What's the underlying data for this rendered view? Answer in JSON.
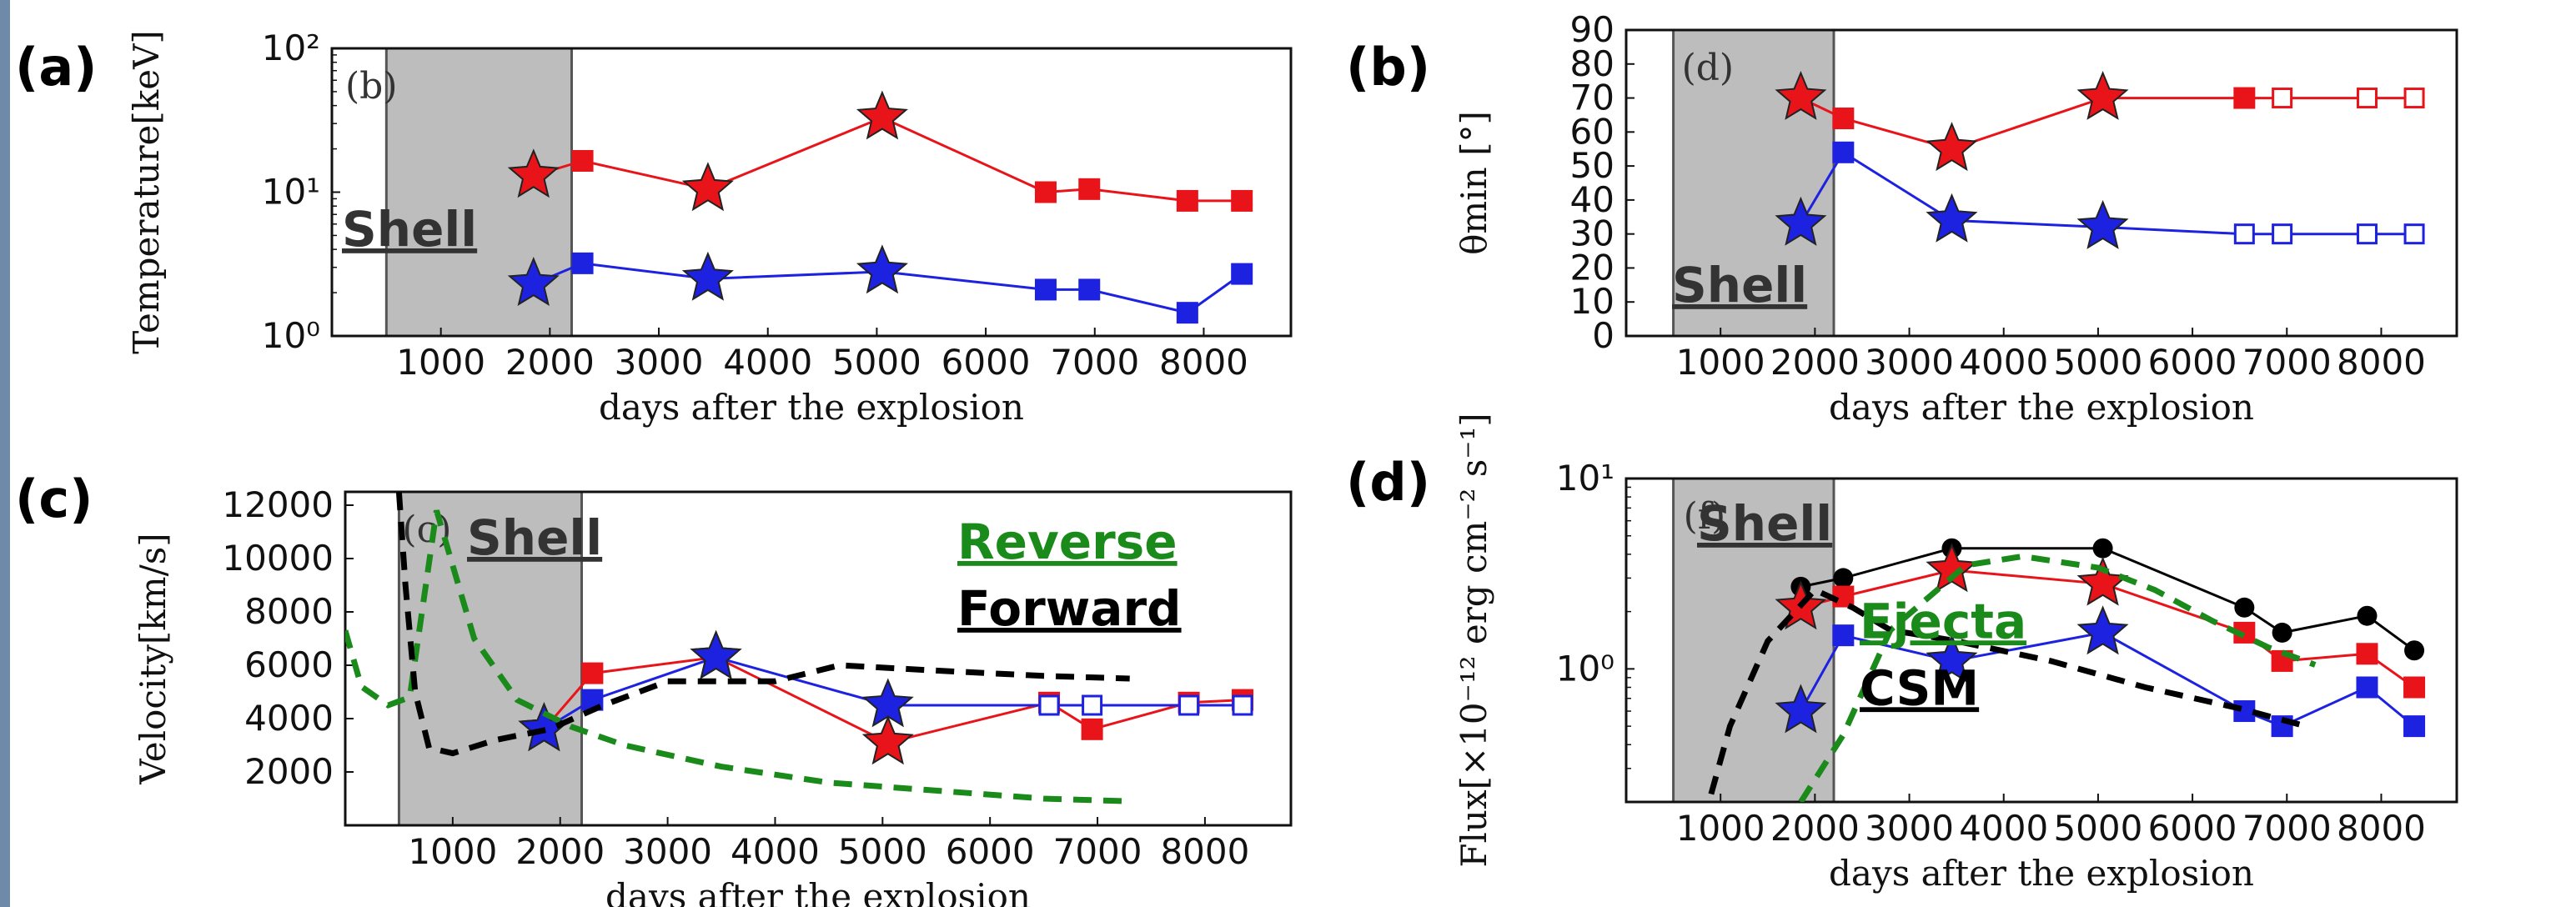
{
  "figure": {
    "panel_letters": [
      "(a)",
      "(b)",
      "(c)",
      "(d)"
    ],
    "sub_letters": [
      "(b)",
      "(d)",
      "(c)",
      "(f)"
    ]
  },
  "chart_data": [
    {
      "type": "line",
      "panel": "(a)",
      "xlabel": "days after the explosion",
      "ylabel": "Temperature[keV]",
      "xlim": [
        0,
        8800
      ],
      "ylim": [
        1,
        100
      ],
      "yscale": "log",
      "xticks": [
        1000,
        2000,
        3000,
        4000,
        5000,
        6000,
        7000,
        8000
      ],
      "yticks": [
        1,
        10,
        100
      ],
      "ytick_labels": [
        "10⁰",
        "10¹",
        "10²"
      ],
      "shell_label": "Shell",
      "shell_range": [
        500,
        2200
      ],
      "series": [
        {
          "color": "#e8141a",
          "x": [
            1850,
            2300,
            3450,
            5050,
            6550,
            6950,
            7850,
            8350
          ],
          "y": [
            13,
            16.5,
            10.5,
            33,
            10,
            10.5,
            8.7,
            8.7
          ],
          "markers": [
            "star",
            "square",
            "star",
            "star",
            "square",
            "square",
            "square",
            "square"
          ]
        },
        {
          "color": "#1d22e0",
          "x": [
            1850,
            2300,
            3450,
            5050,
            6550,
            6950,
            7850,
            8350
          ],
          "y": [
            2.3,
            3.2,
            2.5,
            2.8,
            2.1,
            2.1,
            1.45,
            2.7
          ],
          "markers": [
            "star",
            "square",
            "star",
            "star",
            "square",
            "square",
            "square",
            "square"
          ]
        }
      ]
    },
    {
      "type": "line",
      "panel": "(b)",
      "xlabel": "days after the explosion",
      "ylabel": "θmin [°]",
      "xlim": [
        0,
        8800
      ],
      "ylim": [
        0,
        90
      ],
      "xticks": [
        1000,
        2000,
        3000,
        4000,
        5000,
        6000,
        7000,
        8000
      ],
      "yticks": [
        0,
        10,
        20,
        30,
        40,
        50,
        60,
        70,
        80,
        90
      ],
      "shell_label": "Shell",
      "shell_range": [
        500,
        2200
      ],
      "series": [
        {
          "color": "#e8141a",
          "x": [
            1850,
            2300,
            3450,
            5050,
            6550,
            6950,
            7850,
            8350
          ],
          "y": [
            70,
            64,
            55,
            70,
            70,
            70,
            70,
            70
          ],
          "markers": [
            "star",
            "square",
            "star",
            "star",
            "square",
            "open",
            "open",
            "open"
          ]
        },
        {
          "color": "#1d22e0",
          "x": [
            1850,
            2300,
            3450,
            5050,
            6550,
            6950,
            7850,
            8350
          ],
          "y": [
            33,
            54,
            34,
            32,
            30,
            30,
            30,
            30
          ],
          "markers": [
            "star",
            "square",
            "star",
            "star",
            "open",
            "open",
            "open",
            "open"
          ]
        }
      ]
    },
    {
      "type": "line",
      "panel": "(c)",
      "xlabel": "days after the explosion",
      "ylabel": "Velocity[km/s]",
      "xlim": [
        0,
        8800
      ],
      "ylim": [
        0,
        12500
      ],
      "xticks": [
        1000,
        2000,
        3000,
        4000,
        5000,
        6000,
        7000,
        8000
      ],
      "yticks": [
        2000,
        4000,
        6000,
        8000,
        10000,
        12000
      ],
      "shell_label": "Shell",
      "shell_range": [
        500,
        2200
      ],
      "legend": [
        "Reverse",
        "Forward"
      ],
      "legend_colors": [
        "#1a8a1a",
        "#000000"
      ],
      "series": [
        {
          "color": "#e8141a",
          "x": [
            1850,
            2300,
            3450,
            5050,
            6550,
            6950,
            7850,
            8350
          ],
          "y": [
            3600,
            5700,
            6300,
            3100,
            4600,
            3600,
            4600,
            4700
          ],
          "markers": [
            "star",
            "square",
            "star",
            "star",
            "square",
            "square",
            "square",
            "square"
          ]
        },
        {
          "color": "#1d22e0",
          "x": [
            1850,
            2300,
            3450,
            5050,
            6550,
            6950,
            7850,
            8350
          ],
          "y": [
            3600,
            4700,
            6300,
            4500,
            4500,
            4500,
            4500,
            4500
          ],
          "markers": [
            "star",
            "square",
            "star",
            "star",
            "open",
            "open",
            "open",
            "open"
          ]
        },
        {
          "style": "dashed",
          "color": "#1a8a1a",
          "x": [
            0,
            150,
            400,
            600,
            850,
            1200,
            1600,
            2100,
            2600,
            3500,
            4500,
            5500,
            6500,
            7300
          ],
          "y": [
            7300,
            5200,
            4500,
            4800,
            11800,
            7000,
            4700,
            3700,
            3000,
            2200,
            1600,
            1300,
            1000,
            900
          ]
        },
        {
          "style": "dashed",
          "color": "#000000",
          "x": [
            500,
            560,
            650,
            780,
            1000,
            1400,
            1900,
            2400,
            3000,
            4000,
            4600,
            5500,
            6500,
            7300
          ],
          "y": [
            12500,
            9000,
            5000,
            2900,
            2700,
            3200,
            3600,
            4500,
            5400,
            5400,
            6000,
            5800,
            5600,
            5500
          ]
        }
      ]
    },
    {
      "type": "line",
      "panel": "(d)",
      "xlabel": "days after the explosion",
      "ylabel": "Flux[×10⁻¹² erg cm⁻² s⁻¹]",
      "xlim": [
        0,
        8800
      ],
      "ylim": [
        0.2,
        10
      ],
      "yscale": "log",
      "xticks": [
        1000,
        2000,
        3000,
        4000,
        5000,
        6000,
        7000,
        8000
      ],
      "yticks": [
        1,
        10
      ],
      "ytick_labels": [
        "10⁰",
        "10¹"
      ],
      "shell_label": "Shell",
      "shell_range": [
        500,
        2200
      ],
      "legend": [
        "Ejecta",
        "CSM"
      ],
      "legend_colors": [
        "#1a8a1a",
        "#000000"
      ],
      "series": [
        {
          "color": "#000000",
          "x": [
            1850,
            2300,
            3450,
            5050,
            6550,
            6950,
            7850,
            8350
          ],
          "y": [
            2.7,
            3.0,
            4.3,
            4.3,
            2.1,
            1.55,
            1.9,
            1.25
          ],
          "markers": [
            "circle",
            "circle",
            "circle",
            "circle",
            "circle",
            "circle",
            "circle",
            "circle"
          ]
        },
        {
          "color": "#e8141a",
          "x": [
            1850,
            2300,
            3450,
            5050,
            6550,
            6950,
            7850,
            8350
          ],
          "y": [
            2.1,
            2.4,
            3.3,
            2.8,
            1.55,
            1.1,
            1.2,
            0.8
          ],
          "markers": [
            "star",
            "square",
            "star",
            "star",
            "square",
            "square",
            "square",
            "square"
          ]
        },
        {
          "color": "#1d22e0",
          "x": [
            1850,
            2300,
            3450,
            5050,
            6550,
            6950,
            7850,
            8350
          ],
          "y": [
            0.6,
            1.5,
            1.1,
            1.55,
            0.6,
            0.5,
            0.8,
            0.5
          ],
          "markers": [
            "star",
            "square",
            "star",
            "star",
            "square",
            "square",
            "square",
            "square"
          ]
        },
        {
          "style": "dashed",
          "color": "#1a8a1a",
          "x": [
            1850,
            2300,
            2800,
            3600,
            4200,
            5000,
            5600,
            6200,
            6800,
            7300
          ],
          "y": [
            0.2,
            0.45,
            1.6,
            3.5,
            3.9,
            3.4,
            2.6,
            1.8,
            1.3,
            1.05
          ]
        },
        {
          "style": "dashed",
          "color": "#000000",
          "x": [
            900,
            1100,
            1500,
            2000,
            2400,
            2800,
            3500,
            4500,
            5500,
            6500,
            7200
          ],
          "y": [
            0.22,
            0.5,
            1.4,
            2.6,
            2.1,
            1.6,
            1.4,
            1.1,
            0.8,
            0.62,
            0.5
          ]
        }
      ]
    }
  ]
}
